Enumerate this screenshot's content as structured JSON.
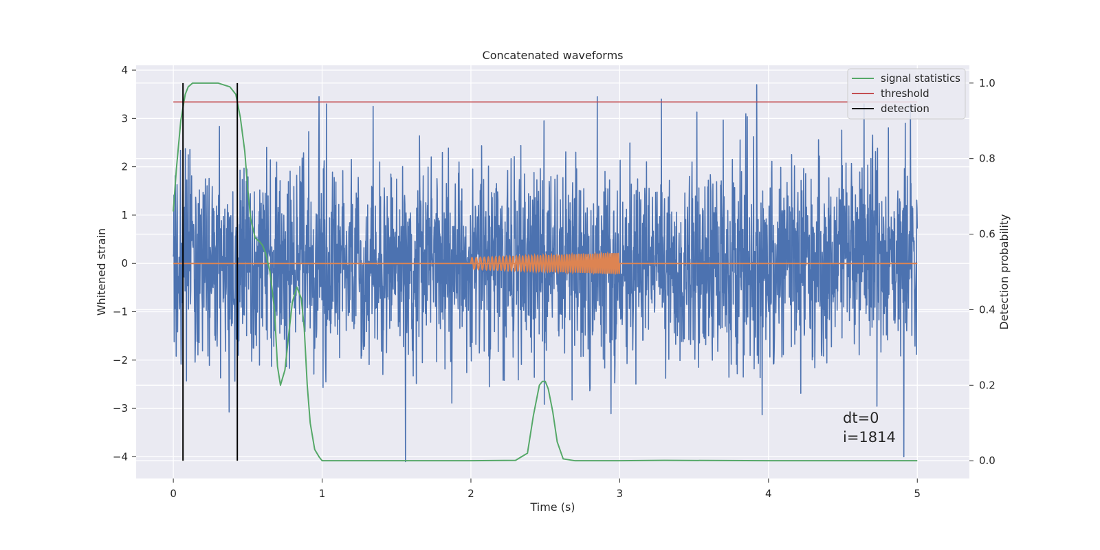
{
  "chart_data": {
    "type": "line",
    "title": "Concatenated waveforms",
    "xlabel": "Time (s)",
    "ylabel": "Whitened strain",
    "ylabel_right": "Detection probability",
    "xlim": [
      -0.25,
      5.35
    ],
    "ylim": [
      -4.45,
      4.1
    ],
    "ylim_right": [
      -0.047,
      1.047
    ],
    "x_ticks": [
      0,
      1,
      2,
      3,
      4,
      5
    ],
    "y_ticks": [
      -4,
      -3,
      -2,
      -1,
      0,
      1,
      2,
      3,
      4
    ],
    "y_ticks_right": [
      0.0,
      0.2,
      0.4,
      0.6,
      0.8,
      1.0
    ],
    "grid": true,
    "legend_position": "top-right",
    "colors": {
      "background": "#eaeaf2",
      "noise": "#4c72b0",
      "injection": "#dd8452",
      "signal_statistics": "#55a868",
      "threshold": "#c44e52",
      "detection": "#000000"
    },
    "legend": [
      {
        "label": "signal statistics",
        "color": "#55a868"
      },
      {
        "label": "threshold",
        "color": "#c44e52"
      },
      {
        "label": "detection",
        "color": "#000000"
      }
    ],
    "series": [
      {
        "name": "signal statistics",
        "axis": "right",
        "x": [
          0,
          0.02,
          0.05,
          0.08,
          0.1,
          0.13,
          0.2,
          0.3,
          0.38,
          0.42,
          0.45,
          0.48,
          0.5,
          0.52,
          0.55,
          0.58,
          0.6,
          0.62,
          0.65,
          0.68,
          0.7,
          0.72,
          0.75,
          0.78,
          0.8,
          0.83,
          0.86,
          0.88,
          0.9,
          0.92,
          0.95,
          0.98,
          1.0,
          1.1,
          1.5,
          2.0,
          2.3,
          2.38,
          2.42,
          2.46,
          2.48,
          2.5,
          2.52,
          2.55,
          2.58,
          2.62,
          2.7,
          3.0,
          3.3,
          4.0,
          5.0
        ],
        "y": [
          0.66,
          0.77,
          0.9,
          0.97,
          0.99,
          1.0,
          1.0,
          1.0,
          0.99,
          0.97,
          0.91,
          0.82,
          0.72,
          0.64,
          0.59,
          0.58,
          0.57,
          0.55,
          0.5,
          0.4,
          0.25,
          0.2,
          0.24,
          0.35,
          0.42,
          0.46,
          0.43,
          0.35,
          0.2,
          0.1,
          0.03,
          0.01,
          0.0,
          0.0,
          0.0,
          0.0,
          0.001,
          0.02,
          0.12,
          0.2,
          0.21,
          0.21,
          0.19,
          0.13,
          0.05,
          0.005,
          0.0,
          0.0,
          0.001,
          0.0,
          0.0
        ]
      },
      {
        "name": "threshold",
        "axis": "right",
        "x": [
          0,
          5
        ],
        "y": [
          0.95,
          0.95
        ]
      },
      {
        "name": "detection",
        "axis": "right",
        "type": "vlines",
        "x": [
          0.065,
          0.43
        ],
        "y_range": [
          0.0,
          1.0
        ]
      },
      {
        "name": "whitened strain",
        "axis": "left",
        "x_range": [
          0,
          5
        ],
        "envelope_typical": 1.0,
        "peaks": [
          {
            "x": 0.98,
            "y": 3.45
          },
          {
            "x": 1.56,
            "y": -4.1
          },
          {
            "x": 2.85,
            "y": 3.45
          },
          {
            "x": 3.28,
            "y": 3.4
          },
          {
            "x": 3.92,
            "y": 3.7
          },
          {
            "x": 4.92,
            "y": 2.9
          },
          {
            "x": 4.91,
            "y": -4.0
          }
        ]
      },
      {
        "name": "injected waveform",
        "axis": "left",
        "x_range": [
          2,
          3
        ],
        "amplitude_start": 0.12,
        "amplitude_end": 0.22,
        "baseline": 0
      }
    ],
    "annotations": [
      {
        "text": "dt=0"
      },
      {
        "text": "i=1814"
      }
    ]
  }
}
